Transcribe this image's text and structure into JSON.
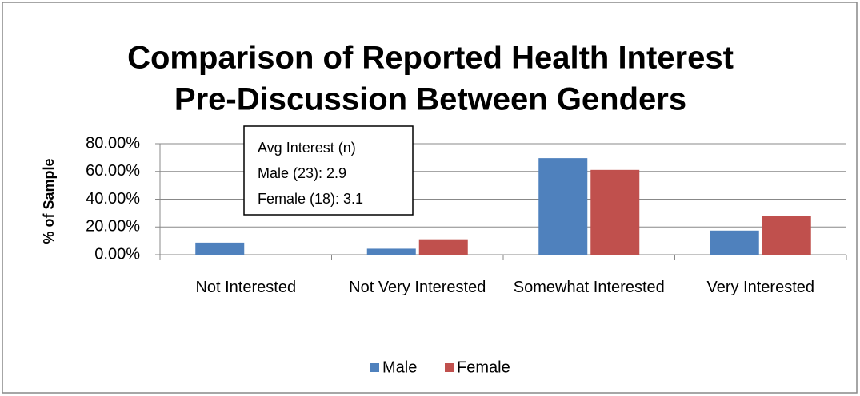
{
  "chart_data": {
    "type": "bar",
    "title": [
      "Comparison of Reported Health Interest",
      "Pre-Discussion Between Genders"
    ],
    "y_label": "% of Sample",
    "categories": [
      "Not Interested",
      "Not Very Interested",
      "Somewhat Interested",
      "Very Interested"
    ],
    "series": [
      {
        "name": "Male",
        "color": "#4f81bd",
        "values": [
          8.7,
          4.35,
          69.57,
          17.39
        ]
      },
      {
        "name": "Female",
        "color": "#c0504d",
        "values": [
          0,
          11.11,
          61.11,
          27.78
        ]
      }
    ],
    "ylim": [
      0,
      80
    ],
    "yticks": [
      {
        "value": 0,
        "label": "0.00%"
      },
      {
        "value": 20,
        "label": "20.00%"
      },
      {
        "value": 40,
        "label": "40.00%"
      },
      {
        "value": 60,
        "label": "60.00%"
      },
      {
        "value": 80,
        "label": "80.00%"
      }
    ],
    "grid": true,
    "legend": "bottom",
    "annotation": [
      "Avg Interest (n)",
      "Male (23): 2.9",
      "Female (18): 3.1"
    ]
  }
}
